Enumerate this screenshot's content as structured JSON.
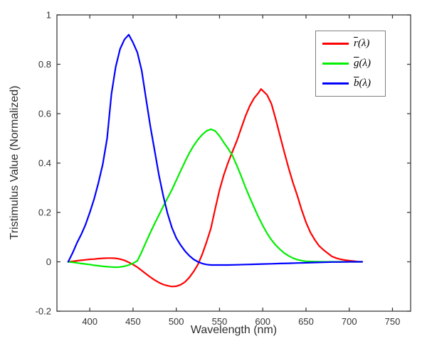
{
  "figure": {
    "xlabel": "Wavelength (nm)",
    "ylabel": "Tristimulus Value (Normalized)"
  },
  "legend": {
    "items": [
      {
        "main": "r",
        "rest": "(λ)",
        "color": "#ff0000"
      },
      {
        "main": "g",
        "rest": "(λ)",
        "color": "#00ee00"
      },
      {
        "main": "b",
        "rest": "(λ)",
        "color": "#0000ff"
      }
    ]
  },
  "chart_data": {
    "type": "line",
    "title": "",
    "xlabel": "Wavelength (nm)",
    "ylabel": "Tristimulus Value (Normalized)",
    "xlim": [
      362,
      771
    ],
    "ylim": [
      -0.2,
      1.0
    ],
    "x_ticks": [
      400,
      450,
      500,
      550,
      600,
      650,
      700,
      750
    ],
    "y_ticks": [
      -0.2,
      0,
      0.2,
      0.4,
      0.6,
      0.8,
      1
    ],
    "grid": false,
    "box": true,
    "tick_direction": "in",
    "legend_position": "top-right",
    "axis_color": "#3c3c3c",
    "line_width": 2.2,
    "series": [
      {
        "name": "r̄(λ)",
        "color": "#ff0000",
        "points": [
          [
            375,
            0
          ],
          [
            380,
            0.002
          ],
          [
            385,
            0.004
          ],
          [
            390,
            0.006
          ],
          [
            395,
            0.008
          ],
          [
            400,
            0.01
          ],
          [
            405,
            0.011
          ],
          [
            410,
            0.013
          ],
          [
            415,
            0.014
          ],
          [
            420,
            0.015
          ],
          [
            425,
            0.015
          ],
          [
            430,
            0.014
          ],
          [
            435,
            0.011
          ],
          [
            440,
            0.006
          ],
          [
            445,
            -0.002
          ],
          [
            450,
            -0.011
          ],
          [
            455,
            -0.022
          ],
          [
            460,
            -0.035
          ],
          [
            465,
            -0.049
          ],
          [
            470,
            -0.062
          ],
          [
            475,
            -0.074
          ],
          [
            480,
            -0.084
          ],
          [
            485,
            -0.092
          ],
          [
            490,
            -0.097
          ],
          [
            495,
            -0.1
          ],
          [
            500,
            -0.099
          ],
          [
            505,
            -0.093
          ],
          [
            510,
            -0.082
          ],
          [
            515,
            -0.064
          ],
          [
            520,
            -0.04
          ],
          [
            525,
            -0.011
          ],
          [
            530,
            0.03
          ],
          [
            535,
            0.08
          ],
          [
            540,
            0.135
          ],
          [
            545,
            0.215
          ],
          [
            550,
            0.29
          ],
          [
            555,
            0.352
          ],
          [
            560,
            0.403
          ],
          [
            565,
            0.447
          ],
          [
            570,
            0.49
          ],
          [
            575,
            0.54
          ],
          [
            580,
            0.59
          ],
          [
            585,
            0.632
          ],
          [
            590,
            0.663
          ],
          [
            595,
            0.684
          ],
          [
            598,
            0.7
          ],
          [
            605,
            0.676
          ],
          [
            610,
            0.64
          ],
          [
            615,
            0.578
          ],
          [
            620,
            0.51
          ],
          [
            625,
            0.443
          ],
          [
            630,
            0.378
          ],
          [
            635,
            0.32
          ],
          [
            640,
            0.268
          ],
          [
            645,
            0.21
          ],
          [
            650,
            0.16
          ],
          [
            655,
            0.12
          ],
          [
            660,
            0.09
          ],
          [
            665,
            0.065
          ],
          [
            670,
            0.049
          ],
          [
            675,
            0.035
          ],
          [
            680,
            0.022
          ],
          [
            685,
            0.015
          ],
          [
            690,
            0.01
          ],
          [
            695,
            0.007
          ],
          [
            700,
            0.005
          ],
          [
            705,
            0.003
          ],
          [
            710,
            0.001
          ],
          [
            715,
            0
          ]
        ]
      },
      {
        "name": "ḡ(λ)",
        "color": "#00ee00",
        "points": [
          [
            375,
            0
          ],
          [
            380,
            -0.002
          ],
          [
            385,
            -0.004
          ],
          [
            390,
            -0.007
          ],
          [
            395,
            -0.009
          ],
          [
            400,
            -0.011
          ],
          [
            405,
            -0.014
          ],
          [
            410,
            -0.016
          ],
          [
            415,
            -0.018
          ],
          [
            420,
            -0.02
          ],
          [
            425,
            -0.021
          ],
          [
            430,
            -0.022
          ],
          [
            435,
            -0.021
          ],
          [
            440,
            -0.018
          ],
          [
            445,
            -0.013
          ],
          [
            450,
            -0.006
          ],
          [
            455,
            0.004
          ],
          [
            460,
            0.04
          ],
          [
            465,
            0.08
          ],
          [
            470,
            0.118
          ],
          [
            475,
            0.155
          ],
          [
            480,
            0.19
          ],
          [
            485,
            0.225
          ],
          [
            490,
            0.258
          ],
          [
            495,
            0.292
          ],
          [
            500,
            0.33
          ],
          [
            505,
            0.368
          ],
          [
            510,
            0.405
          ],
          [
            515,
            0.44
          ],
          [
            520,
            0.47
          ],
          [
            525,
            0.495
          ],
          [
            530,
            0.515
          ],
          [
            535,
            0.53
          ],
          [
            540,
            0.537
          ],
          [
            545,
            0.53
          ],
          [
            550,
            0.51
          ],
          [
            555,
            0.483
          ],
          [
            560,
            0.458
          ],
          [
            565,
            0.43
          ],
          [
            570,
            0.39
          ],
          [
            575,
            0.348
          ],
          [
            580,
            0.302
          ],
          [
            585,
            0.26
          ],
          [
            590,
            0.22
          ],
          [
            595,
            0.182
          ],
          [
            600,
            0.147
          ],
          [
            605,
            0.115
          ],
          [
            610,
            0.089
          ],
          [
            615,
            0.068
          ],
          [
            620,
            0.05
          ],
          [
            625,
            0.035
          ],
          [
            630,
            0.024
          ],
          [
            635,
            0.015
          ],
          [
            640,
            0.009
          ],
          [
            645,
            0.005
          ],
          [
            650,
            0.002
          ],
          [
            660,
            0.001
          ],
          [
            670,
            0
          ],
          [
            680,
            0
          ],
          [
            690,
            0
          ],
          [
            700,
            0
          ],
          [
            710,
            0
          ],
          [
            715,
            0
          ]
        ]
      },
      {
        "name": "b̄(λ)",
        "color": "#0000ff",
        "points": [
          [
            375,
            0
          ],
          [
            380,
            0.035
          ],
          [
            385,
            0.075
          ],
          [
            390,
            0.11
          ],
          [
            395,
            0.15
          ],
          [
            400,
            0.2
          ],
          [
            405,
            0.255
          ],
          [
            410,
            0.32
          ],
          [
            415,
            0.395
          ],
          [
            420,
            0.5
          ],
          [
            425,
            0.68
          ],
          [
            430,
            0.79
          ],
          [
            435,
            0.862
          ],
          [
            440,
            0.9
          ],
          [
            445,
            0.92
          ],
          [
            450,
            0.888
          ],
          [
            455,
            0.848
          ],
          [
            460,
            0.775
          ],
          [
            465,
            0.66
          ],
          [
            470,
            0.55
          ],
          [
            475,
            0.45
          ],
          [
            480,
            0.35
          ],
          [
            485,
            0.266
          ],
          [
            490,
            0.195
          ],
          [
            495,
            0.138
          ],
          [
            500,
            0.096
          ],
          [
            505,
            0.068
          ],
          [
            510,
            0.044
          ],
          [
            515,
            0.025
          ],
          [
            520,
            0.01
          ],
          [
            525,
            0.0
          ],
          [
            530,
            -0.007
          ],
          [
            535,
            -0.011
          ],
          [
            540,
            -0.013
          ],
          [
            550,
            -0.013
          ],
          [
            560,
            -0.013
          ],
          [
            570,
            -0.012
          ],
          [
            580,
            -0.011
          ],
          [
            590,
            -0.01
          ],
          [
            600,
            -0.009
          ],
          [
            610,
            -0.008
          ],
          [
            620,
            -0.007
          ],
          [
            630,
            -0.006
          ],
          [
            640,
            -0.005
          ],
          [
            650,
            -0.004
          ],
          [
            660,
            -0.003
          ],
          [
            670,
            -0.002
          ],
          [
            680,
            -0.001
          ],
          [
            690,
            -0.001
          ],
          [
            700,
            0
          ],
          [
            710,
            0
          ],
          [
            715,
            0
          ]
        ]
      }
    ]
  }
}
